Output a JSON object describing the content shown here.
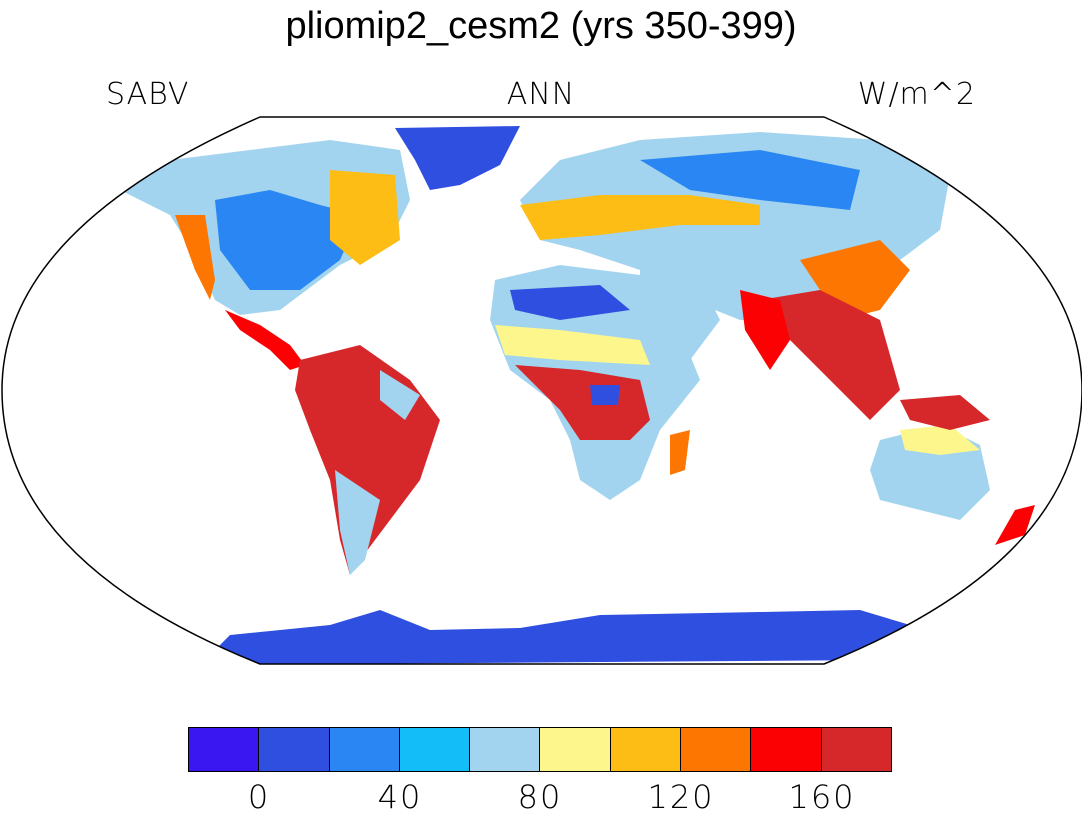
{
  "title": "pliomip2_cesm2 (yrs 350-399)",
  "left_label": "SABV",
  "center_label": "ANN",
  "right_label": "W/m^2",
  "colorbar": {
    "colors": [
      "#3a16f0",
      "#2f4fe0",
      "#2a86f2",
      "#13bdf8",
      "#a2d4ef",
      "#fdf68c",
      "#fdbd14",
      "#fd7602",
      "#fc0104",
      "#d6282a"
    ],
    "tick_labels": [
      "0",
      "40",
      "80",
      "120",
      "160"
    ]
  }
}
